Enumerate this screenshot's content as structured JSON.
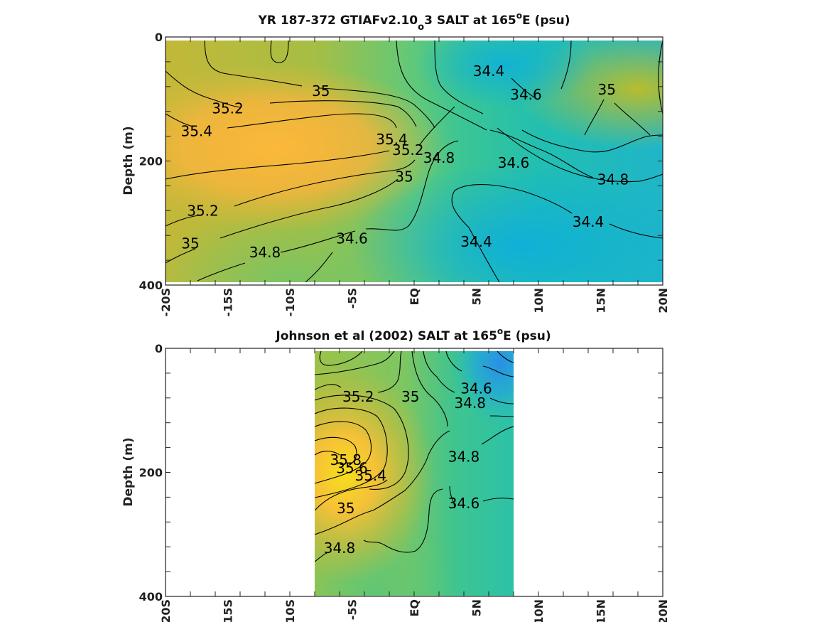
{
  "chart_data": [
    {
      "type": "heatmap",
      "title": "YR 187-372 GTIAFv2.10",
      "title_subscript": "o",
      "title_tail": "3 SALT at 165",
      "title_sup": "o",
      "title_end": "E (psu)",
      "ylabel": "Depth (m)",
      "xlim": [
        -20,
        20
      ],
      "ylim": [
        0,
        400
      ],
      "y_inverted": true,
      "x_ticks": [
        "-20S",
        "-15S",
        "-10S",
        "-5S",
        "EQ",
        "5N",
        "10N",
        "15N",
        "20N"
      ],
      "y_ticks": [
        "0",
        "200",
        "400"
      ],
      "colormap": "parula",
      "contour_labels": [
        {
          "text": "34.4",
          "lat": 6,
          "depth": 55
        },
        {
          "text": "34.6",
          "lat": 9,
          "depth": 93
        },
        {
          "text": "35",
          "lat": 15.5,
          "depth": 85
        },
        {
          "text": "35",
          "lat": -7.5,
          "depth": 87
        },
        {
          "text": "35.2",
          "lat": -15,
          "depth": 115
        },
        {
          "text": "35.4",
          "lat": -17.5,
          "depth": 152
        },
        {
          "text": "35.4",
          "lat": -1.8,
          "depth": 165
        },
        {
          "text": "35.2",
          "lat": -0.5,
          "depth": 182
        },
        {
          "text": "35",
          "lat": -0.8,
          "depth": 225
        },
        {
          "text": "34.8",
          "lat": 2,
          "depth": 195
        },
        {
          "text": "34.6",
          "lat": 8,
          "depth": 203
        },
        {
          "text": "34.8",
          "lat": 16,
          "depth": 230
        },
        {
          "text": "35.2",
          "lat": -17,
          "depth": 280
        },
        {
          "text": "34.4",
          "lat": 14,
          "depth": 298
        },
        {
          "text": "34.4",
          "lat": 5,
          "depth": 330
        },
        {
          "text": "35",
          "lat": -18,
          "depth": 333
        },
        {
          "text": "34.8",
          "lat": -12,
          "depth": 347
        },
        {
          "text": "34.6",
          "lat": -5,
          "depth": 325
        }
      ]
    },
    {
      "type": "heatmap",
      "title": "Johnson et al (2002) SALT at 165",
      "title_sup": "o",
      "title_end": "E (psu)",
      "ylabel": "Depth (m)",
      "xlim": [
        -20,
        20
      ],
      "ylim": [
        0,
        400
      ],
      "y_inverted": true,
      "data_extent_lat": [
        -8,
        8
      ],
      "x_ticks": [
        "-20S",
        "-15S",
        "-10S",
        "-5S",
        "EQ",
        "5N",
        "10N",
        "15N",
        "20N"
      ],
      "y_ticks": [
        "0",
        "200",
        "400"
      ],
      "colormap": "parula",
      "contour_labels": [
        {
          "text": "35.2",
          "lat": -4.5,
          "depth": 78
        },
        {
          "text": "35",
          "lat": -0.3,
          "depth": 78
        },
        {
          "text": "34.6",
          "lat": 5,
          "depth": 65
        },
        {
          "text": "34.8",
          "lat": 4.5,
          "depth": 88
        },
        {
          "text": "35.8",
          "lat": -5.5,
          "depth": 180
        },
        {
          "text": "35.6",
          "lat": -5,
          "depth": 193
        },
        {
          "text": "35.4",
          "lat": -3.5,
          "depth": 205
        },
        {
          "text": "34.8",
          "lat": 4,
          "depth": 175
        },
        {
          "text": "34.6",
          "lat": 4,
          "depth": 250
        },
        {
          "text": "35",
          "lat": -5.5,
          "depth": 258
        },
        {
          "text": "34.8",
          "lat": -6,
          "depth": 322
        }
      ]
    }
  ]
}
